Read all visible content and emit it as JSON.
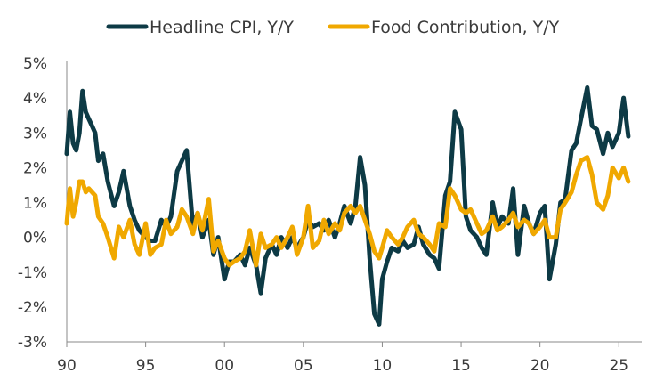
{
  "chart_data": {
    "type": "line",
    "title": "",
    "xlabel": "",
    "ylabel": "",
    "xlim": [
      1990,
      2026
    ],
    "ylim": [
      -3,
      5
    ],
    "grid": false,
    "legend_position": "top-center",
    "x_ticks": [
      {
        "value": 1990,
        "label": "90"
      },
      {
        "value": 1995,
        "label": "95"
      },
      {
        "value": 2000,
        "label": "00"
      },
      {
        "value": 2005,
        "label": "05"
      },
      {
        "value": 2010,
        "label": "10"
      },
      {
        "value": 2015,
        "label": "15"
      },
      {
        "value": 2020,
        "label": "20"
      },
      {
        "value": 2025,
        "label": "25"
      }
    ],
    "y_ticks": [
      {
        "value": 5,
        "label": "5%"
      },
      {
        "value": 4,
        "label": "4%"
      },
      {
        "value": 3,
        "label": "3%"
      },
      {
        "value": 2,
        "label": "2%"
      },
      {
        "value": 1,
        "label": "1%"
      },
      {
        "value": 0,
        "label": "0%"
      },
      {
        "value": -1,
        "label": "-1%"
      },
      {
        "value": -2,
        "label": "-2%"
      },
      {
        "value": -3,
        "label": "-3%"
      }
    ],
    "series": [
      {
        "name": "Headline CPI, Y/Y",
        "color": "#0d3a45",
        "x": [
          1990.0,
          1990.2,
          1990.4,
          1990.6,
          1990.8,
          1991.0,
          1991.2,
          1991.4,
          1991.6,
          1991.8,
          1992.0,
          1992.3,
          1992.6,
          1993.0,
          1993.3,
          1993.6,
          1994.0,
          1994.3,
          1994.6,
          1995.0,
          1995.3,
          1995.6,
          1996.0,
          1996.3,
          1996.6,
          1997.0,
          1997.3,
          1997.6,
          1998.0,
          1998.3,
          1998.6,
          1999.0,
          1999.3,
          1999.6,
          2000.0,
          2000.3,
          2000.6,
          2001.0,
          2001.3,
          2001.6,
          2002.0,
          2002.3,
          2002.6,
          2003.0,
          2003.3,
          2003.6,
          2004.0,
          2004.3,
          2004.6,
          2005.0,
          2005.3,
          2005.6,
          2006.0,
          2006.3,
          2006.6,
          2007.0,
          2007.3,
          2007.6,
          2008.0,
          2008.3,
          2008.6,
          2008.9,
          2009.2,
          2009.5,
          2009.8,
          2010.0,
          2010.3,
          2010.6,
          2011.0,
          2011.3,
          2011.6,
          2012.0,
          2012.3,
          2012.6,
          2013.0,
          2013.3,
          2013.6,
          2014.0,
          2014.3,
          2014.6,
          2015.0,
          2015.3,
          2015.6,
          2016.0,
          2016.3,
          2016.6,
          2017.0,
          2017.3,
          2017.6,
          2018.0,
          2018.3,
          2018.6,
          2019.0,
          2019.3,
          2019.6,
          2020.0,
          2020.3,
          2020.6,
          2021.0,
          2021.3,
          2021.6,
          2022.0,
          2022.3,
          2022.6,
          2023.0,
          2023.3,
          2023.6,
          2024.0,
          2024.3,
          2024.6,
          2025.0,
          2025.3,
          2025.6
        ],
        "values": [
          2.4,
          3.6,
          2.7,
          2.5,
          3.0,
          4.2,
          3.6,
          3.4,
          3.2,
          3.0,
          2.2,
          2.4,
          1.6,
          0.9,
          1.3,
          1.9,
          0.9,
          0.5,
          0.2,
          0.0,
          -0.1,
          -0.1,
          0.5,
          0.3,
          0.6,
          1.9,
          2.2,
          2.5,
          0.3,
          0.7,
          0.0,
          0.5,
          -0.5,
          0.0,
          -1.2,
          -0.7,
          -0.7,
          -0.5,
          -0.8,
          -0.3,
          -0.8,
          -1.6,
          -0.6,
          -0.2,
          -0.5,
          0.0,
          -0.3,
          0.0,
          -0.3,
          0.0,
          0.5,
          0.3,
          0.4,
          0.2,
          0.5,
          0.0,
          0.4,
          0.9,
          0.4,
          0.9,
          2.3,
          1.5,
          -0.6,
          -2.2,
          -2.5,
          -1.2,
          -0.7,
          -0.3,
          -0.4,
          -0.1,
          -0.3,
          -0.2,
          0.3,
          -0.2,
          -0.5,
          -0.6,
          -0.9,
          1.2,
          1.6,
          3.6,
          3.1,
          0.6,
          0.2,
          0.0,
          -0.3,
          -0.5,
          1.0,
          0.3,
          0.6,
          0.4,
          1.4,
          -0.5,
          0.9,
          0.4,
          0.1,
          0.7,
          0.9,
          -1.2,
          -0.2,
          1.0,
          1.1,
          2.5,
          2.7,
          3.4,
          4.3,
          3.2,
          3.1,
          2.4,
          3.0,
          2.6,
          3.0,
          4.0,
          2.9
        ]
      },
      {
        "name": "Food Contribution, Y/Y",
        "color": "#f0a800",
        "x": [
          1990.0,
          1990.2,
          1990.4,
          1990.6,
          1990.8,
          1991.0,
          1991.2,
          1991.4,
          1991.6,
          1991.8,
          1992.0,
          1992.3,
          1992.6,
          1993.0,
          1993.3,
          1993.6,
          1994.0,
          1994.3,
          1994.6,
          1995.0,
          1995.3,
          1995.6,
          1996.0,
          1996.3,
          1996.6,
          1997.0,
          1997.3,
          1997.6,
          1998.0,
          1998.3,
          1998.6,
          1999.0,
          1999.3,
          1999.6,
          2000.0,
          2000.3,
          2000.6,
          2001.0,
          2001.3,
          2001.6,
          2002.0,
          2002.3,
          2002.6,
          2003.0,
          2003.3,
          2003.6,
          2004.0,
          2004.3,
          2004.6,
          2005.0,
          2005.3,
          2005.6,
          2006.0,
          2006.3,
          2006.6,
          2007.0,
          2007.3,
          2007.6,
          2008.0,
          2008.3,
          2008.6,
          2008.9,
          2009.2,
          2009.5,
          2009.8,
          2010.0,
          2010.3,
          2010.6,
          2011.0,
          2011.3,
          2011.6,
          2012.0,
          2012.3,
          2012.6,
          2013.0,
          2013.3,
          2013.6,
          2014.0,
          2014.3,
          2014.6,
          2015.0,
          2015.3,
          2015.6,
          2016.0,
          2016.3,
          2016.6,
          2017.0,
          2017.3,
          2017.6,
          2018.0,
          2018.3,
          2018.6,
          2019.0,
          2019.3,
          2019.6,
          2020.0,
          2020.3,
          2020.6,
          2021.0,
          2021.3,
          2021.6,
          2022.0,
          2022.3,
          2022.6,
          2023.0,
          2023.3,
          2023.6,
          2024.0,
          2024.3,
          2024.6,
          2025.0,
          2025.3,
          2025.6
        ],
        "values": [
          0.4,
          1.4,
          0.6,
          1.0,
          1.6,
          1.6,
          1.3,
          1.4,
          1.3,
          1.2,
          0.6,
          0.4,
          0.0,
          -0.6,
          0.3,
          0.0,
          0.5,
          -0.2,
          -0.5,
          0.4,
          -0.5,
          -0.3,
          -0.2,
          0.5,
          0.1,
          0.3,
          0.8,
          0.6,
          0.1,
          0.7,
          0.2,
          1.1,
          -0.4,
          -0.1,
          -0.6,
          -0.8,
          -0.7,
          -0.6,
          -0.4,
          0.2,
          -0.8,
          0.1,
          -0.3,
          -0.2,
          0.0,
          -0.3,
          0.0,
          0.3,
          -0.5,
          0.0,
          0.9,
          -0.3,
          -0.1,
          0.5,
          0.1,
          0.4,
          0.2,
          0.7,
          0.9,
          0.7,
          0.9,
          0.5,
          0.1,
          -0.4,
          -0.6,
          -0.3,
          0.2,
          0.0,
          -0.2,
          0.0,
          0.3,
          0.5,
          0.1,
          0.0,
          -0.2,
          -0.4,
          0.4,
          0.3,
          1.4,
          1.2,
          0.8,
          0.7,
          0.8,
          0.4,
          0.1,
          0.2,
          0.6,
          0.2,
          0.3,
          0.5,
          0.7,
          0.3,
          0.5,
          0.4,
          0.1,
          0.3,
          0.5,
          0.0,
          0.0,
          0.8,
          1.0,
          1.3,
          1.8,
          2.2,
          2.3,
          1.8,
          1.0,
          0.8,
          1.2,
          2.0,
          1.7,
          2.0,
          1.6
        ]
      }
    ]
  }
}
